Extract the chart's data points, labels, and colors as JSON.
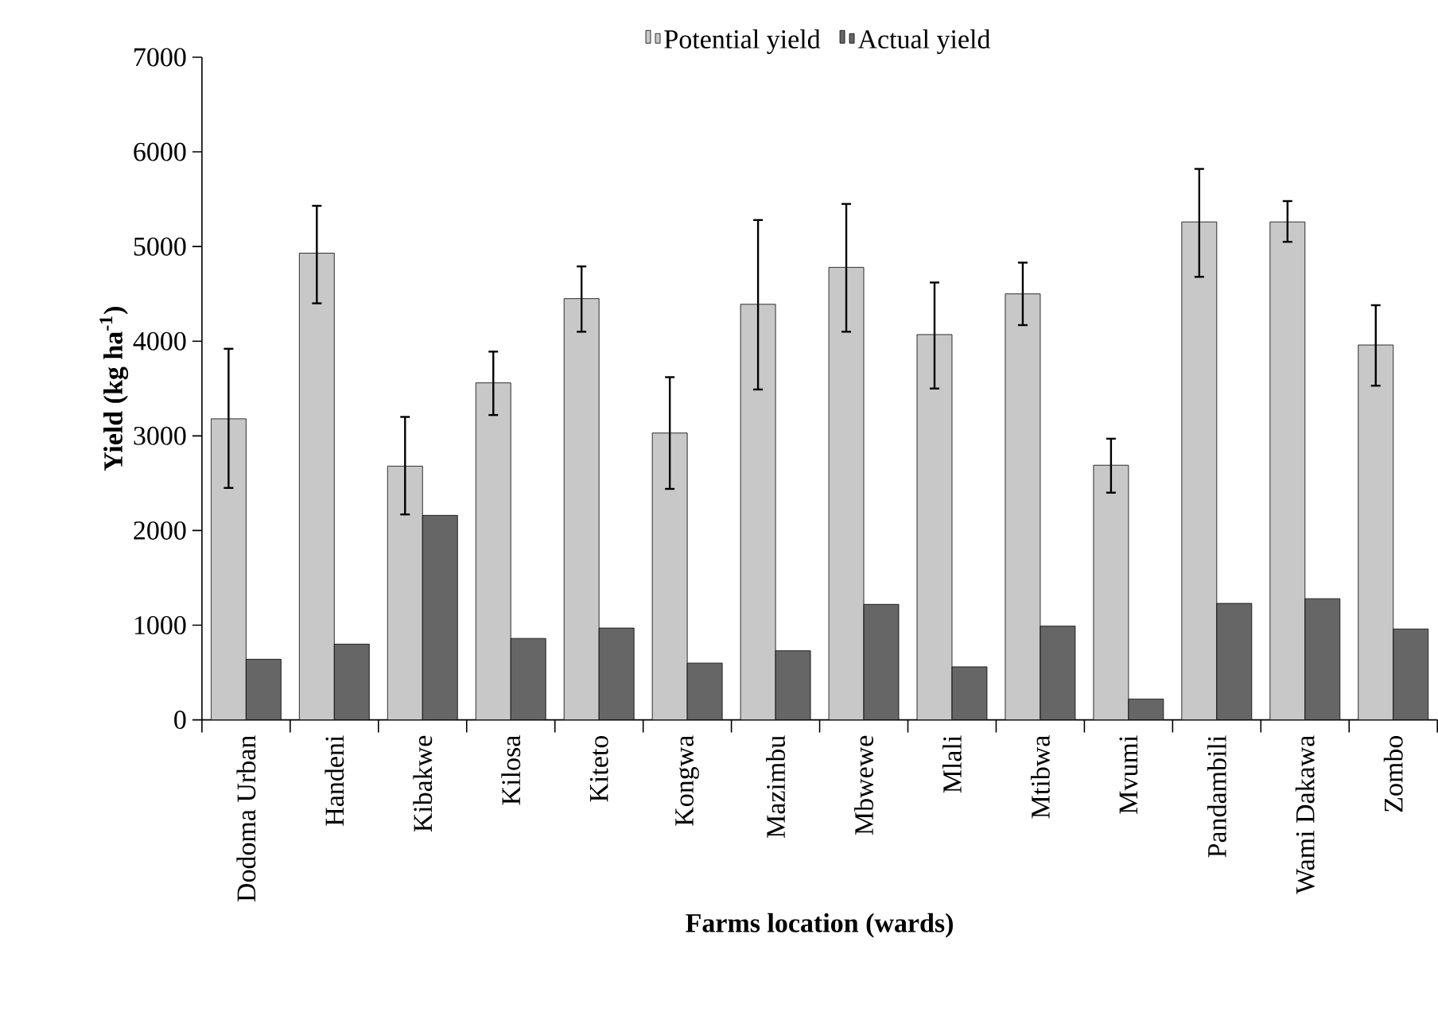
{
  "chart_data": {
    "type": "bar",
    "xlabel": "Farms location (wards)",
    "ylabel": "Yield (kg ha$^{-1}$)",
    "categories": [
      "Dodoma Urban",
      "Handeni",
      "Kibakwe",
      "Kilosa",
      "Kiteto",
      "Kongwa",
      "Mazimbu",
      "Mbwewe",
      "Mlali",
      "Mtibwa",
      "Mvumi",
      "Pandambili",
      "Wami Dakawa",
      "Zombo"
    ],
    "series": [
      {
        "name": "Potential yield",
        "color": "#c8c8c8",
        "values": [
          3180,
          4930,
          2680,
          3560,
          4450,
          3030,
          4390,
          4780,
          4070,
          4500,
          2690,
          5260,
          5260,
          3960
        ],
        "errors": [
          [
            2450,
            3920
          ],
          [
            4400,
            5430
          ],
          [
            2170,
            3200
          ],
          [
            3220,
            3890
          ],
          [
            4100,
            4790
          ],
          [
            2440,
            3620
          ],
          [
            3490,
            5280
          ],
          [
            4100,
            5450
          ],
          [
            3500,
            4620
          ],
          [
            4170,
            4830
          ],
          [
            2400,
            2970
          ],
          [
            4680,
            5820
          ],
          [
            5050,
            5480
          ],
          [
            3530,
            4380
          ]
        ]
      },
      {
        "name": "Actual yield",
        "color": "#666666",
        "values": [
          640,
          800,
          2160,
          860,
          970,
          600,
          730,
          1220,
          560,
          990,
          220,
          1230,
          1280,
          960
        ]
      }
    ],
    "ylim": [
      0,
      7000
    ],
    "yticks": [
      0,
      1000,
      2000,
      3000,
      4000,
      5000,
      6000,
      7000
    ],
    "grid": false,
    "legend": "top"
  }
}
